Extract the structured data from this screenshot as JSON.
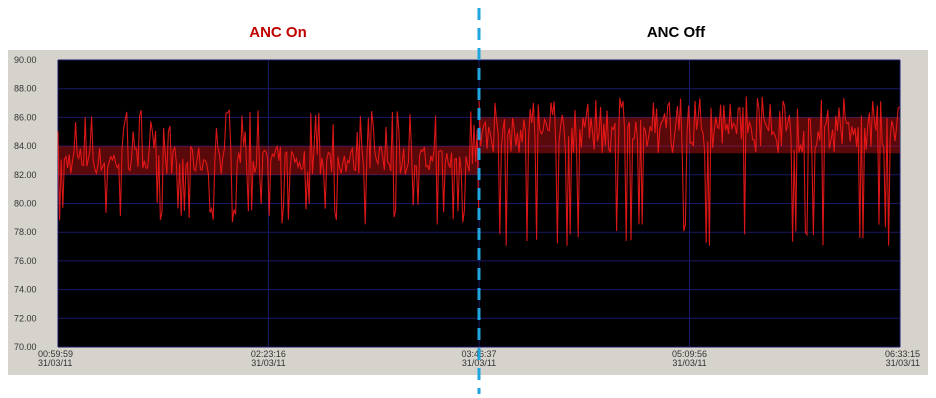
{
  "colors": {
    "panel_background": "#d6d3cd",
    "plot_background": "#000000",
    "series_color": "#ff1a1a",
    "gridline_color": "#1a1a66",
    "divider_color": "#1fa6e0",
    "anc_on_label_color": "#c00000",
    "anc_off_label_color": "#000000"
  },
  "annotations": {
    "anc_on": "ANC On",
    "anc_off": "ANC Off"
  },
  "chart_data": {
    "type": "line",
    "title": "",
    "xlabel": "",
    "ylabel": "",
    "ylim": [
      70,
      90
    ],
    "y_ticks": [
      "90.00",
      "88.00",
      "86.00",
      "84.00",
      "82.00",
      "80.00",
      "78.00",
      "76.00",
      "74.00",
      "72.00",
      "70.00"
    ],
    "x_ticks": [
      {
        "time": "00:59:59",
        "date": "31/03/11"
      },
      {
        "time": "02:23:16",
        "date": "31/03/11"
      },
      {
        "time": "03:46:37",
        "date": "31/03/11"
      },
      {
        "time": "05:09:56",
        "date": "31/03/11"
      },
      {
        "time": "06:33:15",
        "date": "31/03/11"
      }
    ],
    "x_range": [
      "00:59:59",
      "06:33:15"
    ],
    "grid": true,
    "divider_at": "03:46:37",
    "envelope": {
      "segments": [
        {
          "from": "00:59:59",
          "to": "03:46:37",
          "upper": 86.5,
          "lower": 78.5,
          "band_upper": 84.0,
          "band_lower": 82.0
        },
        {
          "from": "03:46:37",
          "to": "06:33:15",
          "upper": 87.5,
          "lower": 77.0,
          "band_upper": 86.0,
          "band_lower": 83.5
        }
      ]
    }
  }
}
